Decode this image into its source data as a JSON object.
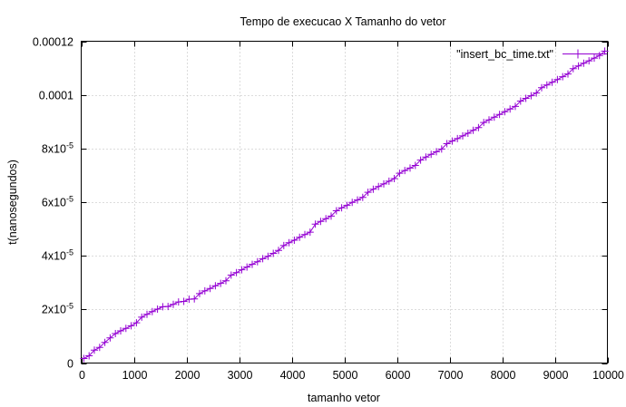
{
  "chart_data": {
    "type": "line",
    "title": "Tempo de execucao X Tamanho do vetor",
    "xlabel": "tamanho vetor",
    "ylabel": "t(nanosegundos)",
    "xlim": [
      0,
      10000
    ],
    "ylim": [
      0,
      0.00012
    ],
    "grid": true,
    "legend_position": "top-right",
    "marker": "plus",
    "x_ticks": [
      {
        "value": 0,
        "label": "0"
      },
      {
        "value": 1000,
        "label": "1000"
      },
      {
        "value": 2000,
        "label": "2000"
      },
      {
        "value": 3000,
        "label": "3000"
      },
      {
        "value": 4000,
        "label": "4000"
      },
      {
        "value": 5000,
        "label": "5000"
      },
      {
        "value": 6000,
        "label": "6000"
      },
      {
        "value": 7000,
        "label": "7000"
      },
      {
        "value": 8000,
        "label": "8000"
      },
      {
        "value": 9000,
        "label": "9000"
      },
      {
        "value": 10000,
        "label": "10000"
      }
    ],
    "y_ticks": [
      {
        "value": 0,
        "label": "0",
        "mant": "",
        "exp": ""
      },
      {
        "value": 2e-05,
        "label": "2x10-5",
        "mant": "2x10",
        "exp": "-5"
      },
      {
        "value": 4e-05,
        "label": "4x10-5",
        "mant": "4x10",
        "exp": "-5"
      },
      {
        "value": 6e-05,
        "label": "6x10-5",
        "mant": "6x10",
        "exp": "-5"
      },
      {
        "value": 8e-05,
        "label": "8x10-5",
        "mant": "8x10",
        "exp": "-5"
      },
      {
        "value": 0.0001,
        "label": "0.0001",
        "mant": "",
        "exp": ""
      },
      {
        "value": 0.00012,
        "label": "0.00012",
        "mant": "",
        "exp": ""
      }
    ],
    "series": [
      {
        "name": "\"insert_bc_time.txt\"",
        "color": "#9400d3",
        "x": [
          50,
          150,
          250,
          350,
          450,
          550,
          650,
          750,
          850,
          950,
          1050,
          1150,
          1250,
          1350,
          1450,
          1550,
          1650,
          1750,
          1850,
          1950,
          2050,
          2150,
          2250,
          2350,
          2450,
          2550,
          2650,
          2750,
          2850,
          2950,
          3050,
          3150,
          3250,
          3350,
          3450,
          3550,
          3650,
          3750,
          3850,
          3950,
          4050,
          4150,
          4250,
          4350,
          4450,
          4550,
          4650,
          4750,
          4850,
          4950,
          5050,
          5150,
          5250,
          5350,
          5450,
          5550,
          5650,
          5750,
          5850,
          5950,
          6050,
          6150,
          6250,
          6350,
          6450,
          6550,
          6650,
          6750,
          6850,
          6950,
          7050,
          7150,
          7250,
          7350,
          7450,
          7550,
          7650,
          7750,
          7850,
          7950,
          8050,
          8150,
          8250,
          8350,
          8450,
          8550,
          8650,
          8750,
          8850,
          8950,
          9050,
          9150,
          9250,
          9350,
          9450,
          9550,
          9650,
          9750,
          9850,
          9950
        ],
        "y": [
          1.7e-06,
          2.7e-06,
          4.8e-06,
          5.8e-06,
          7.7e-06,
          9.4e-06,
          1.1e-05,
          1.2e-05,
          1.29e-05,
          1.39e-05,
          1.5e-05,
          1.71e-05,
          1.82e-05,
          1.92e-05,
          2.01e-05,
          2.1e-05,
          2.11e-05,
          2.19e-05,
          2.28e-05,
          2.3e-05,
          2.38e-05,
          2.39e-05,
          2.59e-05,
          2.69e-05,
          2.78e-05,
          2.88e-05,
          2.97e-05,
          3.07e-05,
          3.28e-05,
          3.37e-05,
          3.48e-05,
          3.58e-05,
          3.68e-05,
          3.78e-05,
          3.89e-05,
          3.98e-05,
          4.09e-05,
          4.2e-05,
          4.38e-05,
          4.49e-05,
          4.58e-05,
          4.69e-05,
          4.79e-05,
          4.88e-05,
          5.18e-05,
          5.28e-05,
          5.38e-05,
          5.48e-05,
          5.68e-05,
          5.79e-05,
          5.88e-05,
          5.99e-05,
          6.08e-05,
          6.18e-05,
          6.37e-05,
          6.48e-05,
          6.58e-05,
          6.68e-05,
          6.78e-05,
          6.88e-05,
          7.08e-05,
          7.18e-05,
          7.27e-05,
          7.37e-05,
          7.57e-05,
          7.68e-05,
          7.78e-05,
          7.88e-05,
          7.98e-05,
          8.18e-05,
          8.28e-05,
          8.37e-05,
          8.47e-05,
          8.57e-05,
          8.68e-05,
          8.78e-05,
          8.97e-05,
          9.07e-05,
          9.17e-05,
          9.27e-05,
          9.37e-05,
          9.47e-05,
          9.57e-05,
          9.77e-05,
          9.87e-05,
          9.97e-05,
          0.0001007,
          0.0001027,
          0.0001037,
          0.0001047,
          0.0001057,
          0.0001068,
          0.0001078,
          0.0001098,
          0.0001108,
          0.0001118,
          0.0001127,
          0.0001137,
          0.0001147,
          0.0001163
        ]
      }
    ]
  }
}
